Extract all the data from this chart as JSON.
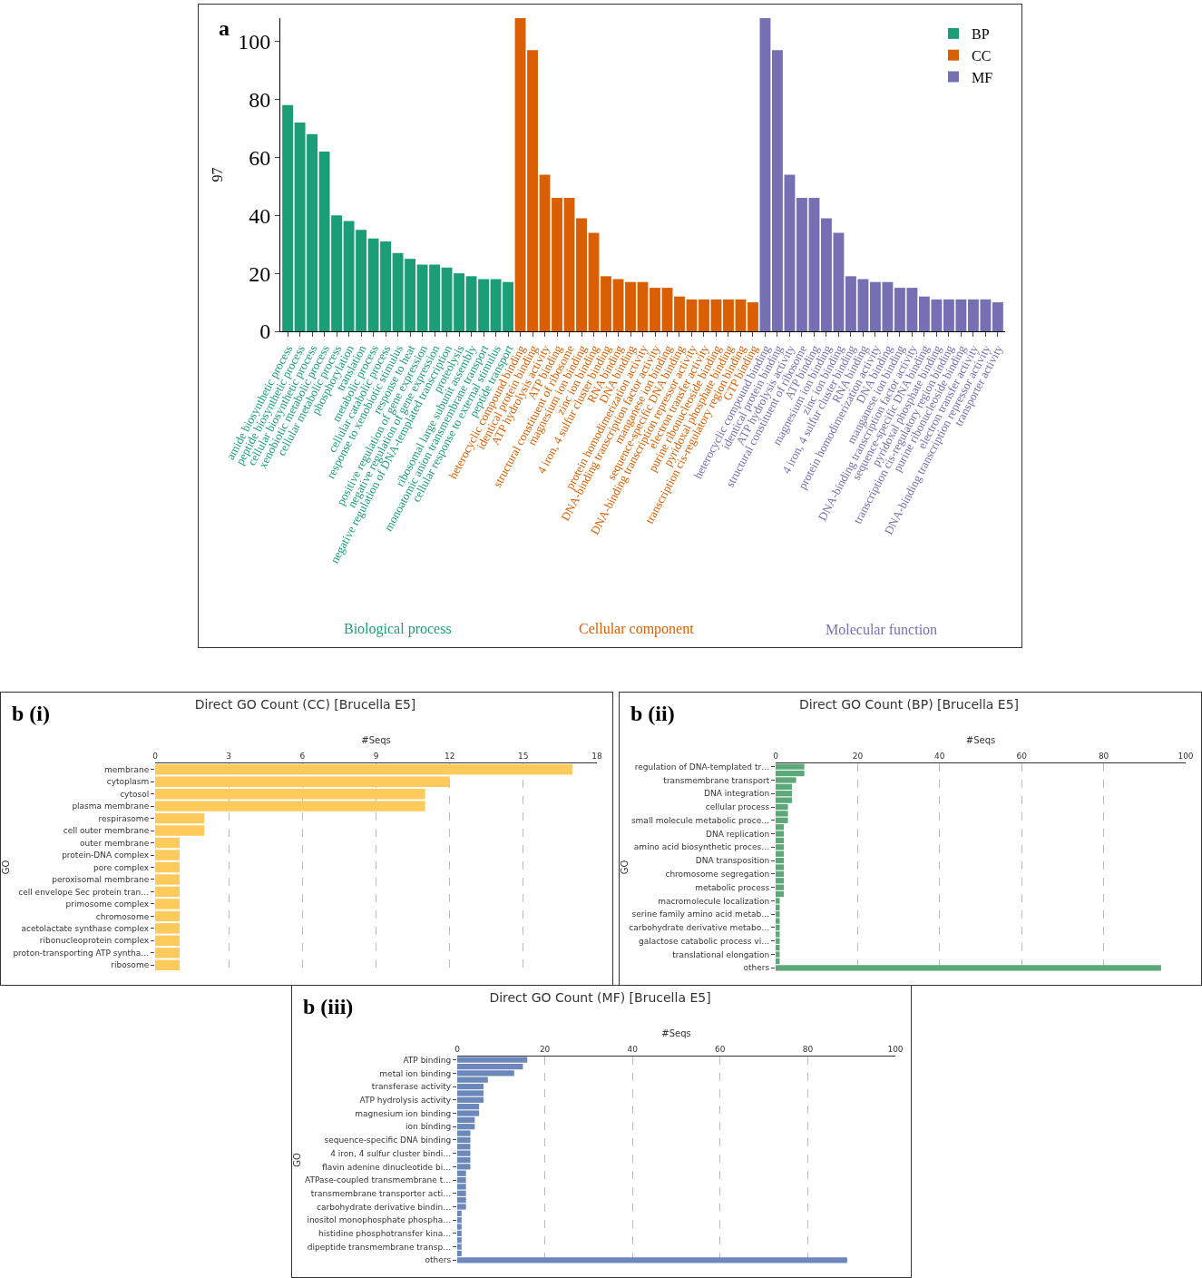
{
  "chart_data": [
    {
      "type": "bar",
      "ylabel": "97",
      "ylim": [
        0,
        108
      ],
      "yticks": [
        0,
        20,
        40,
        60,
        80,
        100
      ],
      "grid": false,
      "legend": "top right",
      "annotations": [
        "a",
        "Biological process",
        "Cellular component",
        "Molecular function"
      ],
      "categories": [
        "amide biosynthetic process",
        "peptide biosynthetic process",
        "cellular biosynthetic process",
        "xenobiotic metabolic process",
        "cellular metabolic process",
        "phosphorylation",
        "translation",
        "metabolic process",
        "cellular catabolic process",
        "response to xenobiotic stimulus",
        "response to heat",
        "positive regulation of gene expression",
        "negative regulation of gene expression",
        "negative regulation of DNA-templated transcription",
        "proteolysis",
        "ribosomal large subunit assembly",
        "monoatomic anion transmembrane transport",
        "cellular response to external stimulus",
        "peptide transport",
        "heterocyclic compound binding",
        "identical protein binding",
        "ATP hydrolysis activity",
        "ATP binding",
        "structural constituent of ribosome",
        "magnesium ion binding",
        "zinc ion binding",
        "4 iron, 4 sulfur cluster binding",
        "RNA binding",
        "DNA binding",
        "protein homodimerization activity",
        "DNA-binding transcription factor activity",
        "manganese ion binding",
        "sequence-specific DNA binding",
        "DNA-binding transcription repressor activity",
        "electron transfer activity",
        "purine ribonucleoside binding",
        "pyridoxal phosphate binding",
        "transcription cis-regulatory region binding",
        "GTP binding",
        "heterocyclic compound binding",
        "identical protein binding",
        "ATP hydrolysis activity",
        "structural constituent of ribosome",
        "ATP binding",
        "magnesium ion binding",
        "zinc ion binding",
        "4 iron, 4 sulfur cluster binding",
        "RNA binding",
        "protein homodimerization activity",
        "DNA binding",
        "manganese ion binding",
        "DNA-binding transcription factor activity",
        "sequence-specific DNA binding",
        "pyridoxal phosphate binding",
        "transcription cis-regulatory region binding",
        "purine ribonucleoside binding",
        "electron transfer activity",
        "DNA-binding transcription repressor activity",
        "transporter activity"
      ],
      "series": [
        {
          "name": "BP",
          "color": "#1b9e77",
          "values": [
            78,
            72,
            68,
            62,
            40,
            38,
            35,
            32,
            31,
            27,
            25,
            23,
            23,
            22,
            20,
            19,
            18,
            18,
            17,
            null,
            null,
            null,
            null,
            null,
            null,
            null,
            null,
            null,
            null,
            null,
            null,
            null,
            null,
            null,
            null,
            null,
            null,
            null,
            null,
            null,
            null,
            null,
            null,
            null,
            null,
            null,
            null,
            null,
            null,
            null,
            null,
            null,
            null,
            null,
            null,
            null,
            null,
            null,
            null
          ]
        },
        {
          "name": "CC",
          "color": "#d95f02",
          "values": [
            null,
            null,
            null,
            null,
            null,
            null,
            null,
            null,
            null,
            null,
            null,
            null,
            null,
            null,
            null,
            null,
            null,
            null,
            null,
            108,
            97,
            54,
            46,
            46,
            39,
            34,
            19,
            18,
            17,
            17,
            15,
            15,
            12,
            11,
            11,
            11,
            11,
            11,
            10,
            null,
            null,
            null,
            null,
            null,
            null,
            null,
            null,
            null,
            null,
            null,
            null,
            null,
            null,
            null,
            null,
            null,
            null,
            null,
            null
          ]
        },
        {
          "name": "MF",
          "color": "#7570b3",
          "values": [
            null,
            null,
            null,
            null,
            null,
            null,
            null,
            null,
            null,
            null,
            null,
            null,
            null,
            null,
            null,
            null,
            null,
            null,
            null,
            null,
            null,
            null,
            null,
            null,
            null,
            null,
            null,
            null,
            null,
            null,
            null,
            null,
            null,
            null,
            null,
            null,
            null,
            null,
            null,
            108,
            97,
            54,
            46,
            46,
            39,
            34,
            19,
            18,
            17,
            17,
            15,
            15,
            12,
            11,
            11,
            11,
            11,
            11,
            10
          ]
        }
      ]
    },
    {
      "type": "bar",
      "orientation": "horizontal",
      "title": "Direct GO Count (CC) [Brucella E5]",
      "xlabel": "#Seqs",
      "ylabel": "GO",
      "xlim": [
        0,
        18
      ],
      "xticks": [
        0,
        3,
        6,
        9,
        12,
        15,
        18
      ],
      "grid": "x",
      "color": "#fdca5c",
      "annotations": [
        "b (i)"
      ],
      "categories": [
        "membrane",
        "cytoplasm",
        "cytosol",
        "plasma membrane",
        "respirasome",
        "cell outer membrane",
        "outer membrane",
        "protein-DNA complex",
        "pore complex",
        "peroxisomal membrane",
        "cell envelope Sec protein tran…",
        "primosome complex",
        "chromosome",
        "acetolactate synthase complex",
        "ribonucleoprotein complex",
        "proton-transporting ATP syntha…",
        "ribosome"
      ],
      "values": [
        17,
        12,
        11,
        11,
        2,
        2,
        1,
        1,
        1,
        1,
        1,
        1,
        1,
        1,
        1,
        1,
        1
      ]
    },
    {
      "type": "bar",
      "orientation": "horizontal",
      "title": "Direct GO Count (BP) [Brucella E5]",
      "xlabel": "#Seqs",
      "ylabel": "GO",
      "xlim": [
        0,
        100
      ],
      "xticks": [
        0,
        20,
        40,
        60,
        80,
        100
      ],
      "grid": "x",
      "color": "#5ca878",
      "annotations": [
        "b (ii)"
      ],
      "categories": [
        "regulation of DNA-templated tr…",
        null,
        "transmembrane transport",
        null,
        "DNA integration",
        null,
        "cellular process",
        null,
        "small molecule metabolic proce…",
        null,
        "DNA replication",
        null,
        "amino acid biosynthetic proces…",
        null,
        "DNA transposition",
        null,
        "chromosome segregation",
        null,
        "metabolic process",
        null,
        "macromolecule localization",
        null,
        "serine family amino acid metab…",
        null,
        "carbohydrate derivative metabo…",
        null,
        "galactose catabolic process vi…",
        null,
        "translational elongation",
        null,
        "others"
      ],
      "values": [
        7,
        7,
        5,
        4,
        4,
        4,
        3,
        3,
        3,
        2,
        2,
        2,
        2,
        2,
        2,
        2,
        2,
        2,
        2,
        2,
        1,
        1,
        1,
        1,
        1,
        1,
        1,
        1,
        1,
        1,
        94
      ]
    },
    {
      "type": "bar",
      "orientation": "horizontal",
      "title": "Direct GO Count (MF) [Brucella E5]",
      "xlabel": "#Seqs",
      "ylabel": "GO",
      "xlim": [
        0,
        100
      ],
      "xticks": [
        0,
        20,
        40,
        60,
        80,
        100
      ],
      "grid": "x",
      "color": "#6c87b9",
      "annotations": [
        "b (iii)"
      ],
      "categories": [
        "ATP binding",
        null,
        "metal ion binding",
        null,
        "transferase activity",
        null,
        "ATP hydrolysis activity",
        null,
        "magnesium ion binding",
        null,
        "ion binding",
        null,
        "sequence-specific DNA binding",
        null,
        "4 iron, 4 sulfur cluster bindi…",
        null,
        "flavin adenine dinucleotide bi…",
        null,
        "ATPase-coupled transmembrane t…",
        null,
        "transmembrane transporter acti…",
        null,
        "carbohydrate derivative bindin…",
        null,
        "inositol monophosphate phospha…",
        null,
        "histidine phosphotransfer kina…",
        null,
        "dipeptide transmembrane transp…",
        null,
        "others"
      ],
      "values": [
        16,
        15,
        13,
        7,
        6,
        6,
        6,
        5,
        5,
        4,
        4,
        3,
        3,
        3,
        3,
        3,
        3,
        2,
        2,
        2,
        2,
        2,
        2,
        1,
        1,
        1,
        1,
        1,
        1,
        1,
        89
      ]
    }
  ]
}
